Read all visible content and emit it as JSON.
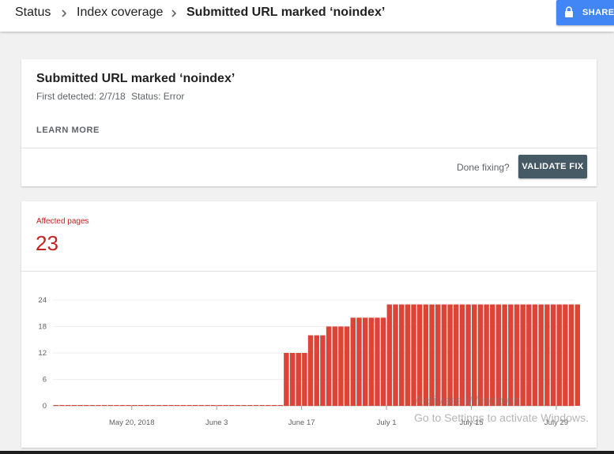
{
  "breadcrumb": {
    "items": [
      "Status",
      "Index coverage",
      "Submitted URL marked ‘noindex’"
    ]
  },
  "share": {
    "label": "SHARE",
    "icon": "lock-icon"
  },
  "issue": {
    "title": "Submitted URL marked ‘noindex’",
    "first_detected": "First detected: 2/7/18",
    "status": "Status: Error",
    "learn_more": "LEARN MORE",
    "done_fixing": "Done fixing?",
    "validate_fix": "VALIDATE FIX"
  },
  "affected": {
    "label": "Affected pages",
    "count": "23"
  },
  "colors": {
    "accent": "#4285f4",
    "error": "#c5221f",
    "bar": "#db4437",
    "button_dark": "#455a64"
  },
  "chart_data": {
    "type": "bar",
    "ylim": [
      0,
      24
    ],
    "yticks": [
      "0",
      "6",
      "12",
      "18",
      "24"
    ],
    "xticks": [
      "May 20, 2018",
      "June 3",
      "June 17",
      "July 1",
      "July 15",
      "July 29"
    ],
    "x_range": [
      "2018-05-07",
      "2018-08-01"
    ],
    "grid": true,
    "series": [
      {
        "values": [
          {
            "start": "2018-05-07",
            "end": "2018-06-13",
            "value": 0
          },
          {
            "start": "2018-06-14",
            "end": "2018-06-17",
            "value": 12
          },
          {
            "start": "2018-06-18",
            "end": "2018-06-20",
            "value": 16
          },
          {
            "start": "2018-06-21",
            "end": "2018-06-24",
            "value": 18
          },
          {
            "start": "2018-06-25",
            "end": "2018-06-30",
            "value": 20
          },
          {
            "start": "2018-07-01",
            "end": "2018-08-01",
            "value": 23
          }
        ]
      }
    ]
  },
  "watermark": {
    "line1": "Activate Windows",
    "line2": "Go to Settings to activate Windows."
  }
}
